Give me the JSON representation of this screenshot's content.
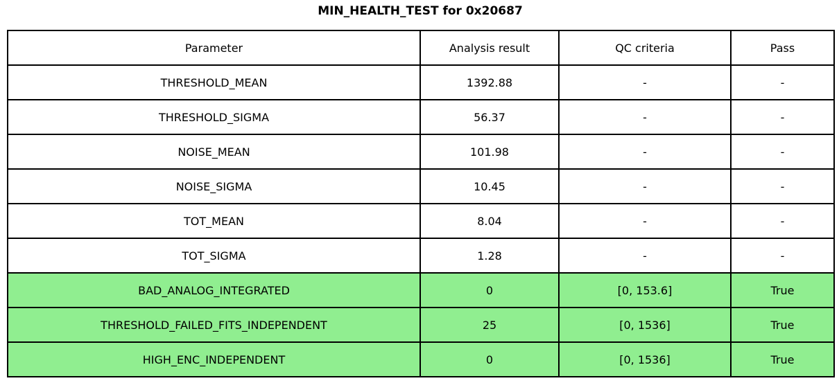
{
  "title": "MIN_HEALTH_TEST for 0x20687",
  "colors": {
    "highlight_green": "#90EE90",
    "border": "#000000",
    "background": "#ffffff",
    "text": "#000000"
  },
  "chart_data": {
    "type": "table",
    "title": "MIN_HEALTH_TEST for 0x20687",
    "headers": [
      "Parameter",
      "Analysis result",
      "QC criteria",
      "Pass"
    ],
    "rows": [
      {
        "parameter": "THRESHOLD_MEAN",
        "result": "1392.88",
        "qc": "-",
        "pass": "-",
        "highlight": false
      },
      {
        "parameter": "THRESHOLD_SIGMA",
        "result": "56.37",
        "qc": "-",
        "pass": "-",
        "highlight": false
      },
      {
        "parameter": "NOISE_MEAN",
        "result": "101.98",
        "qc": "-",
        "pass": "-",
        "highlight": false
      },
      {
        "parameter": "NOISE_SIGMA",
        "result": "10.45",
        "qc": "-",
        "pass": "-",
        "highlight": false
      },
      {
        "parameter": "TOT_MEAN",
        "result": "8.04",
        "qc": "-",
        "pass": "-",
        "highlight": false
      },
      {
        "parameter": "TOT_SIGMA",
        "result": "1.28",
        "qc": "-",
        "pass": "-",
        "highlight": false
      },
      {
        "parameter": "BAD_ANALOG_INTEGRATED",
        "result": "0",
        "qc": "[0, 153.6]",
        "pass": "True",
        "highlight": true
      },
      {
        "parameter": "THRESHOLD_FAILED_FITS_INDEPENDENT",
        "result": "25",
        "qc": "[0, 1536]",
        "pass": "True",
        "highlight": true
      },
      {
        "parameter": "HIGH_ENC_INDEPENDENT",
        "result": "0",
        "qc": "[0, 1536]",
        "pass": "True",
        "highlight": true
      }
    ]
  }
}
